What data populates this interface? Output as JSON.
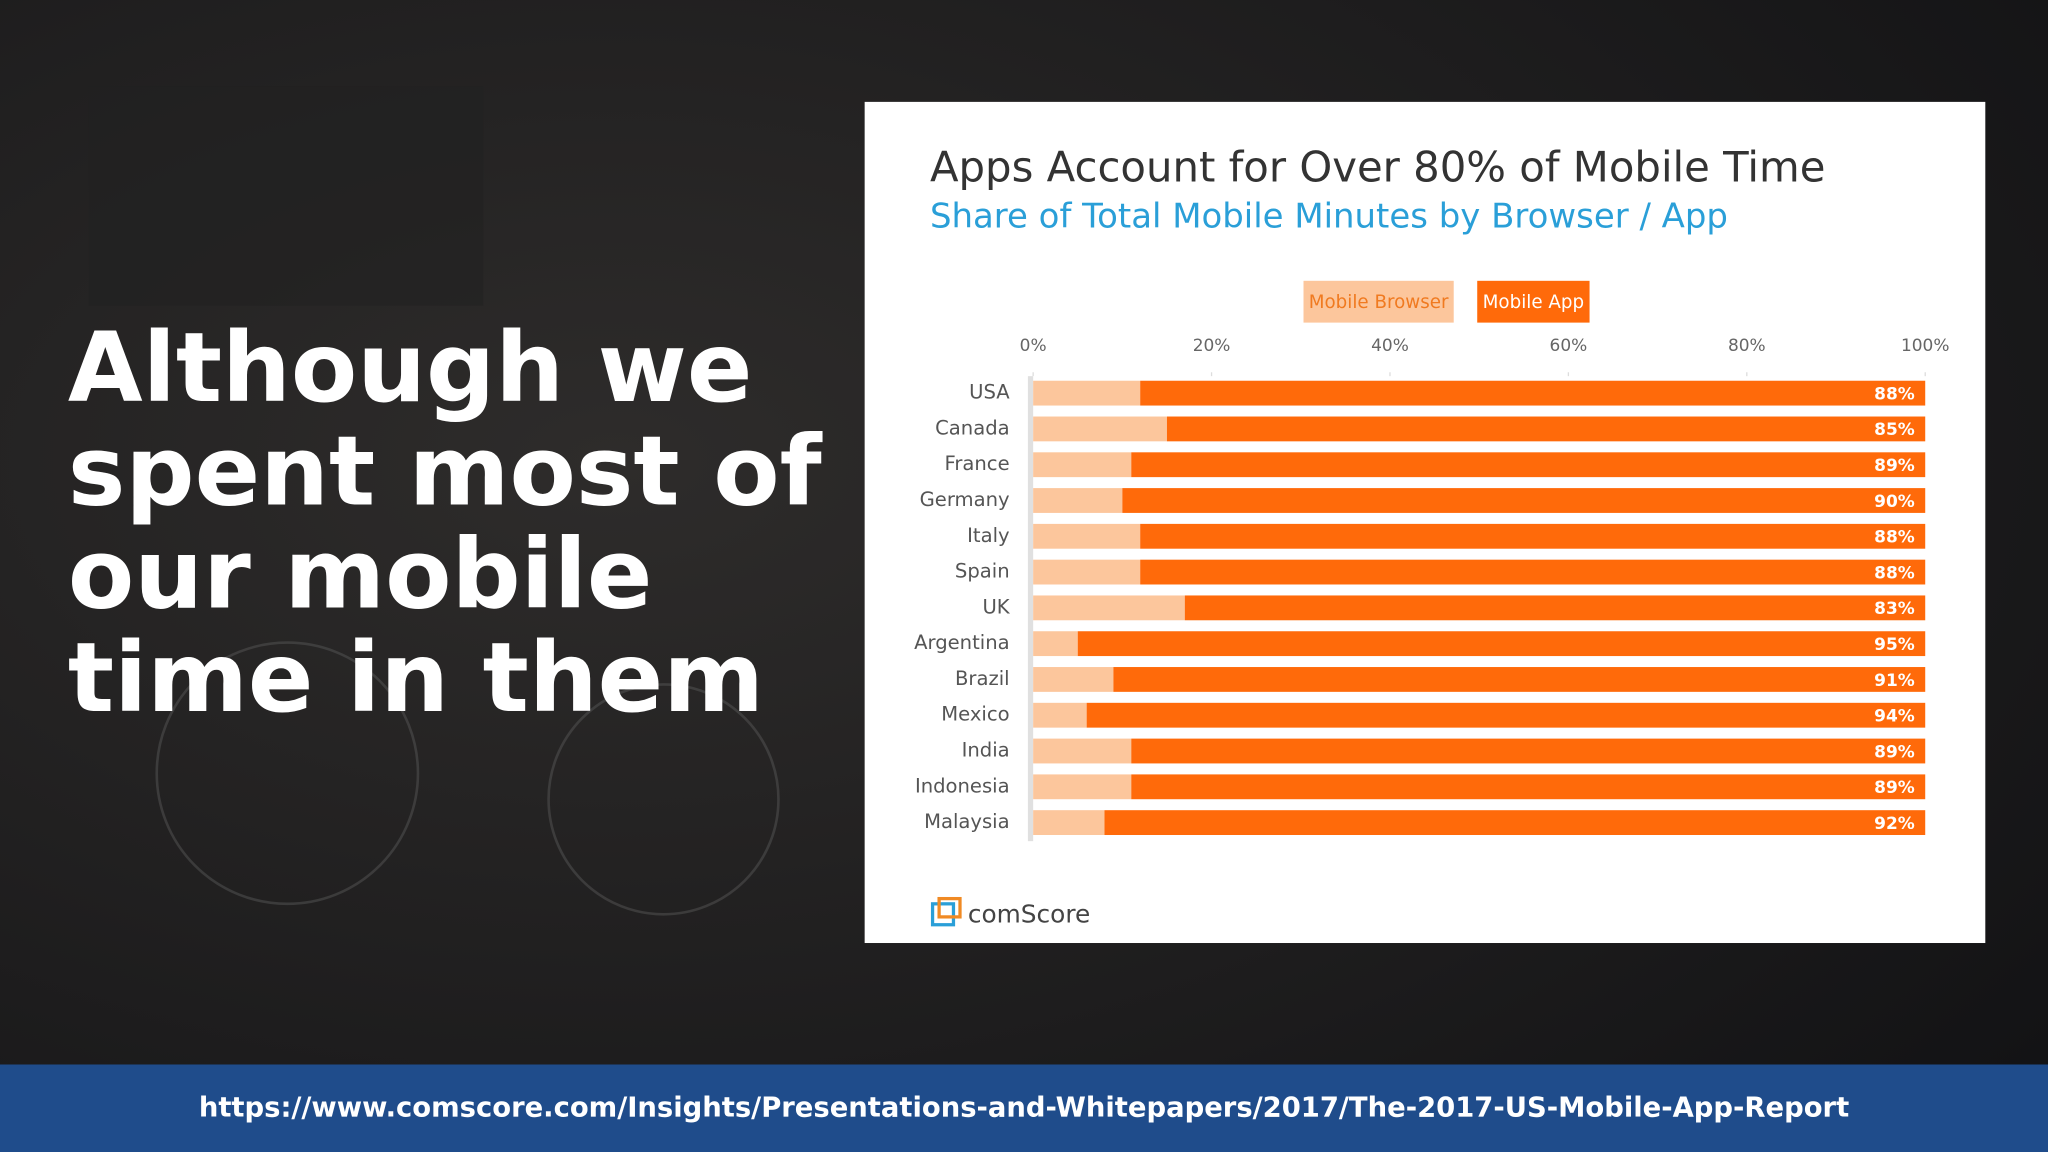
{
  "heading": [
    "Although we",
    "spent most of",
    "our mobile",
    "time in them"
  ],
  "footer_url": "https://www.comscore.com/Insights/Presentations-and-Whitepapers/2017/The-2017-US-Mobile-App-Report",
  "source_logo": "comScore",
  "chart_data": {
    "type": "stacked-barh",
    "title": "Apps Account for Over 80% of Mobile Time",
    "subtitle": "Share of Total Mobile Minutes by Browser / App",
    "categories": [
      "USA",
      "Canada",
      "France",
      "Germany",
      "Italy",
      "Spain",
      "UK",
      "Argentina",
      "Brazil",
      "Mexico",
      "India",
      "Indonesia",
      "Malaysia"
    ],
    "series": [
      {
        "name": "Mobile Browser",
        "color": "#fcc69c",
        "values": [
          12,
          15,
          11,
          10,
          12,
          12,
          17,
          5,
          9,
          6,
          11,
          11,
          8
        ]
      },
      {
        "name": "Mobile App",
        "color": "#ff6a0a",
        "values": [
          88,
          85,
          89,
          90,
          88,
          88,
          83,
          95,
          91,
          94,
          89,
          89,
          92
        ],
        "value_labels": [
          "88%",
          "85%",
          "89%",
          "90%",
          "88%",
          "88%",
          "83%",
          "95%",
          "91%",
          "94%",
          "89%",
          "89%",
          "92%"
        ]
      }
    ],
    "xlim": [
      0,
      100
    ],
    "xticks": [
      {
        "value": 0,
        "label": "0%"
      },
      {
        "value": 20,
        "label": "20%"
      },
      {
        "value": 40,
        "label": "40%"
      },
      {
        "value": 60,
        "label": "60%"
      },
      {
        "value": 80,
        "label": "80%"
      },
      {
        "value": 100,
        "label": "100%"
      }
    ],
    "legend": "top"
  }
}
